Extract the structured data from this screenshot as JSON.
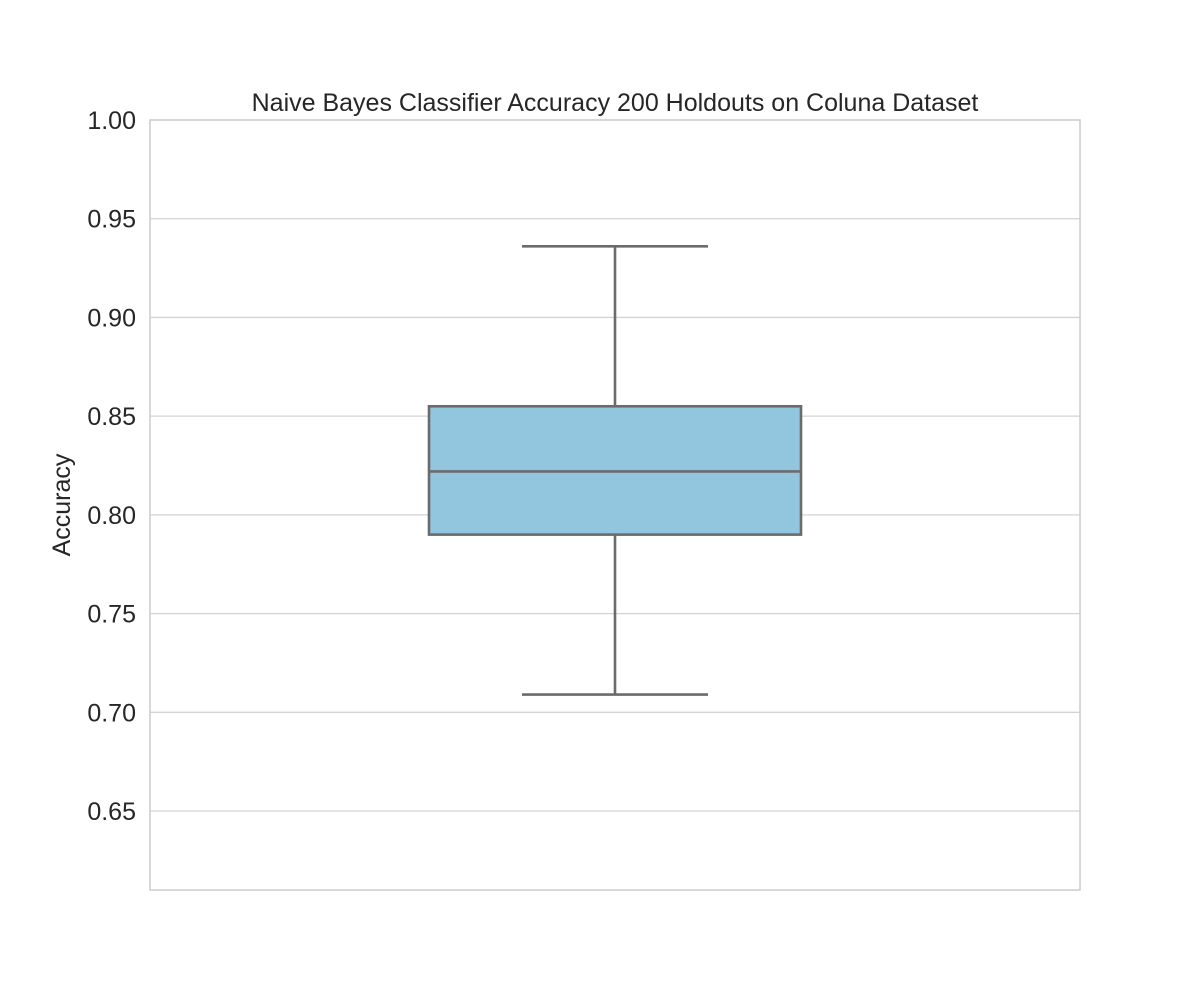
{
  "chart_data": {
    "type": "box",
    "title": "Naive Bayes Classifier Accuracy 200 Holdouts on Coluna Dataset",
    "xlabel": "",
    "ylabel": "Accuracy",
    "ylim": [
      0.61,
      1.0
    ],
    "yticks": [
      0.65,
      0.7,
      0.75,
      0.8,
      0.85,
      0.9,
      0.95,
      1.0
    ],
    "ytick_labels": [
      "0.65",
      "0.70",
      "0.75",
      "0.80",
      "0.85",
      "0.90",
      "0.95",
      "1.00"
    ],
    "grid": true,
    "box": {
      "whisker_low": 0.709,
      "q1": 0.79,
      "median": 0.822,
      "q3": 0.855,
      "whisker_high": 0.936
    },
    "colors": {
      "box_fill": "#92c6de",
      "box_edge": "#6b6b6b",
      "grid": "#d3d3d3",
      "spine": "#cccccc",
      "text": "#262626"
    }
  }
}
